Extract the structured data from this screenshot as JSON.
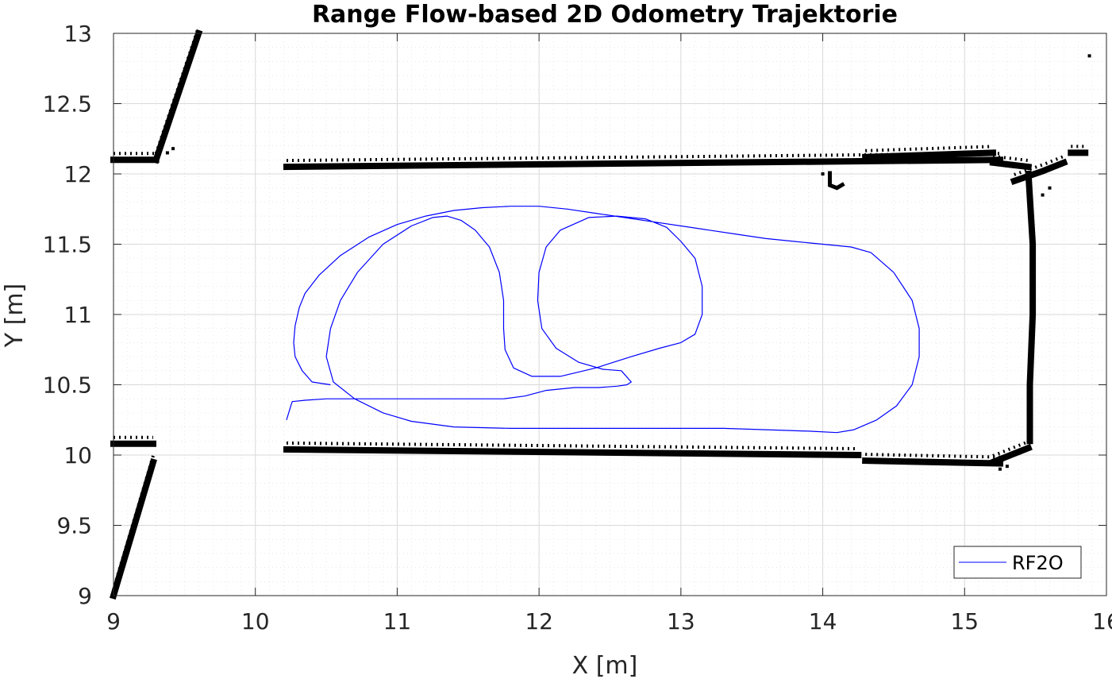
{
  "chart_data": {
    "type": "line",
    "title": "Range Flow-based 2D Odometry Trajektorie",
    "xlabel": "X [m]",
    "ylabel": "Y [m]",
    "xlim": [
      9,
      16
    ],
    "ylim": [
      9,
      13
    ],
    "xticks": [
      "9",
      "10",
      "11",
      "12",
      "13",
      "14",
      "15",
      "16"
    ],
    "yticks": [
      "9",
      "9.5",
      "10",
      "10.5",
      "11",
      "11.5",
      "12",
      "12.5",
      "13"
    ],
    "grid": true,
    "minor_grid": true,
    "legend_position": "bottom-right",
    "colors": {
      "trajectory": "#0000ff",
      "map": "#000000",
      "grid": "#d9d9d9"
    },
    "series": [
      {
        "name": "RF2O",
        "x": [
          10.53,
          10.4,
          10.33,
          10.28,
          10.27,
          10.28,
          10.31,
          10.35,
          10.45,
          10.6,
          10.8,
          11.0,
          11.2,
          11.4,
          11.6,
          11.8,
          12.0,
          12.2,
          12.4,
          12.6,
          12.8,
          13.0,
          13.2,
          13.4,
          13.6,
          13.8,
          14.0,
          14.2,
          14.34,
          14.5,
          14.63,
          14.68,
          14.68,
          14.63,
          14.52,
          14.38,
          14.22,
          14.1,
          13.9,
          13.6,
          13.3,
          13.0,
          12.6,
          12.2,
          11.8,
          11.4,
          11.1,
          10.9,
          10.7,
          10.55,
          10.5,
          10.53,
          10.6,
          10.72,
          10.9,
          11.1,
          11.25,
          11.35,
          11.45,
          11.55,
          11.65,
          11.72,
          11.75,
          11.75,
          11.76,
          11.82,
          11.95,
          12.15,
          12.4,
          12.65,
          12.85,
          13.0,
          13.1,
          13.15,
          13.15,
          13.1,
          13.0,
          12.9,
          12.75,
          12.55,
          12.35,
          12.15,
          12.05,
          12.0,
          11.99,
          12.02,
          12.12,
          12.28,
          12.45,
          12.58,
          12.65,
          12.62,
          12.55,
          12.42,
          12.25,
          12.05,
          11.9,
          11.75,
          11.6,
          11.4,
          11.2,
          11.05,
          10.9,
          10.7,
          10.5,
          10.35,
          10.26,
          10.25,
          10.22
        ],
        "y": [
          10.5,
          10.52,
          10.6,
          10.7,
          10.8,
          10.92,
          11.05,
          11.15,
          11.28,
          11.42,
          11.55,
          11.64,
          11.7,
          11.74,
          11.76,
          11.77,
          11.77,
          11.75,
          11.72,
          11.69,
          11.66,
          11.63,
          11.6,
          11.57,
          11.54,
          11.52,
          11.5,
          11.48,
          11.44,
          11.3,
          11.1,
          10.9,
          10.7,
          10.5,
          10.35,
          10.25,
          10.18,
          10.16,
          10.17,
          10.18,
          10.19,
          10.19,
          10.19,
          10.19,
          10.19,
          10.2,
          10.24,
          10.3,
          10.4,
          10.52,
          10.7,
          10.9,
          11.1,
          11.3,
          11.5,
          11.63,
          11.69,
          11.7,
          11.67,
          11.6,
          11.48,
          11.3,
          11.1,
          10.9,
          10.75,
          10.62,
          10.56,
          10.56,
          10.62,
          10.7,
          10.76,
          10.8,
          10.86,
          11.0,
          11.2,
          11.4,
          11.52,
          11.62,
          11.68,
          11.7,
          11.69,
          11.6,
          11.48,
          11.3,
          11.1,
          10.9,
          10.76,
          10.66,
          10.61,
          10.6,
          10.52,
          10.5,
          10.49,
          10.48,
          10.48,
          10.46,
          10.42,
          10.4,
          10.4,
          10.4,
          10.4,
          10.4,
          10.4,
          10.4,
          10.4,
          10.39,
          10.38,
          10.35,
          10.25
        ]
      }
    ],
    "occupancy_map": {
      "walls": [
        [
          [
            10.22,
            12.05
          ],
          [
            15.25,
            12.1
          ]
        ],
        [
          [
            14.3,
            12.12
          ],
          [
            15.2,
            12.15
          ]
        ],
        [
          [
            15.2,
            12.08
          ],
          [
            15.45,
            12.05
          ]
        ],
        [
          [
            15.45,
            12.0
          ],
          [
            15.48,
            11.5
          ],
          [
            15.48,
            11.0
          ],
          [
            15.46,
            10.5
          ],
          [
            15.46,
            10.1
          ]
        ],
        [
          [
            15.2,
            9.95
          ],
          [
            15.45,
            10.05
          ]
        ],
        [
          [
            14.3,
            9.96
          ],
          [
            15.25,
            9.94
          ]
        ],
        [
          [
            10.22,
            10.04
          ],
          [
            14.25,
            10.0
          ]
        ],
        [
          [
            9.0,
            12.1
          ],
          [
            9.3,
            12.1
          ]
        ],
        [
          [
            9.3,
            12.1
          ],
          [
            9.6,
            13.0
          ]
        ],
        [
          [
            9.0,
            10.08
          ],
          [
            9.28,
            10.08
          ]
        ],
        [
          [
            9.28,
            9.95
          ],
          [
            9.0,
            9.0
          ]
        ],
        [
          [
            15.75,
            12.15
          ],
          [
            15.85,
            12.15
          ]
        ],
        [
          [
            15.35,
            11.95
          ],
          [
            15.55,
            12.02
          ],
          [
            15.7,
            12.08
          ]
        ]
      ],
      "features": [
        [
          [
            14.05,
            12.02
          ],
          [
            14.05,
            11.92
          ],
          [
            14.1,
            11.9
          ],
          [
            14.15,
            11.93
          ]
        ]
      ],
      "points": [
        [
          15.88,
          12.84
        ],
        [
          14.0,
          12.0
        ],
        [
          15.55,
          11.85
        ],
        [
          15.6,
          11.9
        ],
        [
          15.25,
          9.9
        ],
        [
          15.3,
          9.92
        ],
        [
          9.38,
          12.15
        ],
        [
          9.42,
          12.18
        ]
      ]
    }
  }
}
